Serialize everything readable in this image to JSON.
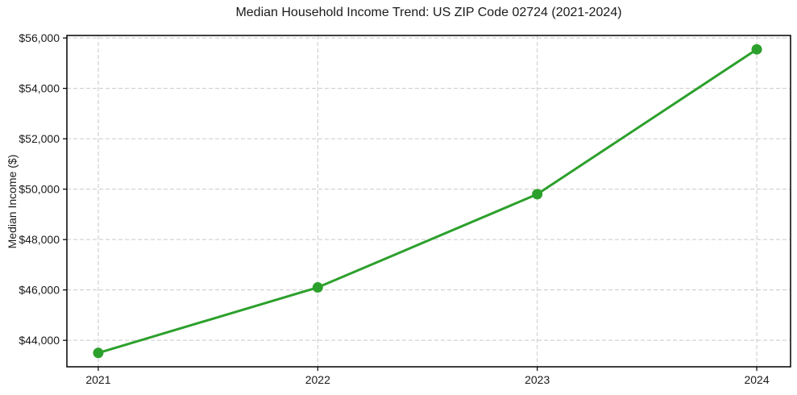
{
  "page": {
    "background": "#ffffff"
  },
  "chart_data": {
    "type": "line",
    "title": "Median Household Income Trend: US ZIP Code 02724 (2021-2024)",
    "xlabel": "",
    "ylabel": "Median Income ($)",
    "x": [
      2021,
      2022,
      2023,
      2024
    ],
    "xtick_labels": [
      "2021",
      "2022",
      "2023",
      "2024"
    ],
    "values": [
      43500,
      46100,
      49800,
      55550
    ],
    "ytick_values": [
      44000,
      46000,
      48000,
      50000,
      52000,
      54000,
      56000
    ],
    "ytick_labels": [
      "$44,000",
      "$46,000",
      "$48,000",
      "$50,000",
      "$52,000",
      "$54,000",
      "$56,000"
    ],
    "xlim": [
      2020.857,
      2024.154
    ],
    "ylim": [
      42950,
      56100
    ],
    "grid": true,
    "grid_style": "dashed",
    "legend_position": "none",
    "line_color": "#2ca02c",
    "marker_color": "#2ca02c",
    "marker_shape": "circle",
    "grid_color": "#c9c9c9",
    "axis_color": "#000000",
    "text_color": "#1a1a1a"
  }
}
